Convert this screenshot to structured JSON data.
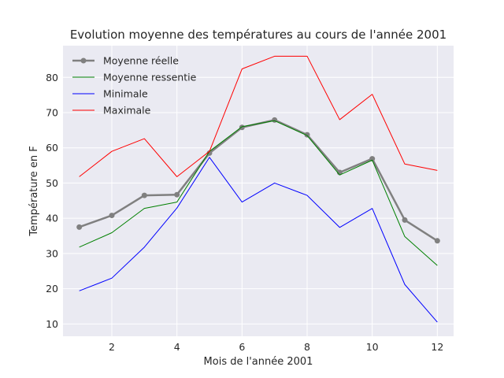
{
  "chart_data": {
    "type": "line",
    "title": "Evolution moyenne des températures au cours de l'année 2001",
    "xlabel": "Mois de l'année 2001",
    "ylabel": "Température en F",
    "xlim": [
      0.5,
      12.5
    ],
    "ylim": [
      6.5,
      89
    ],
    "x_ticks": [
      2,
      4,
      6,
      8,
      10,
      12
    ],
    "y_ticks": [
      10,
      20,
      30,
      40,
      50,
      60,
      70,
      80
    ],
    "grid": true,
    "legend_position": "top-left",
    "x": [
      1,
      2,
      3,
      4,
      5,
      6,
      7,
      8,
      9,
      10,
      11,
      12
    ],
    "series": [
      {
        "name": "Moyenne réelle",
        "color": "#808080",
        "marker": "circle",
        "values": [
          37.5,
          40.8,
          46.5,
          46.7,
          58.5,
          65.8,
          67.9,
          63.7,
          53.0,
          56.9,
          39.5,
          33.6
        ]
      },
      {
        "name": "Moyenne ressentie",
        "color": "#008000",
        "marker": "none",
        "values": [
          31.8,
          35.9,
          42.8,
          44.6,
          59.0,
          66.0,
          67.7,
          63.5,
          52.3,
          56.5,
          34.8,
          26.6
        ]
      },
      {
        "name": "Minimale",
        "color": "#0000ff",
        "marker": "none",
        "values": [
          19.4,
          23.0,
          31.8,
          42.9,
          57.3,
          44.6,
          50.0,
          46.5,
          37.4,
          42.8,
          21.2,
          10.5
        ]
      },
      {
        "name": "Maximale",
        "color": "#ff0000",
        "marker": "none",
        "values": [
          51.8,
          59.0,
          62.6,
          51.8,
          59.0,
          82.4,
          86.0,
          86.0,
          68.0,
          75.2,
          55.4,
          53.6
        ]
      }
    ]
  }
}
